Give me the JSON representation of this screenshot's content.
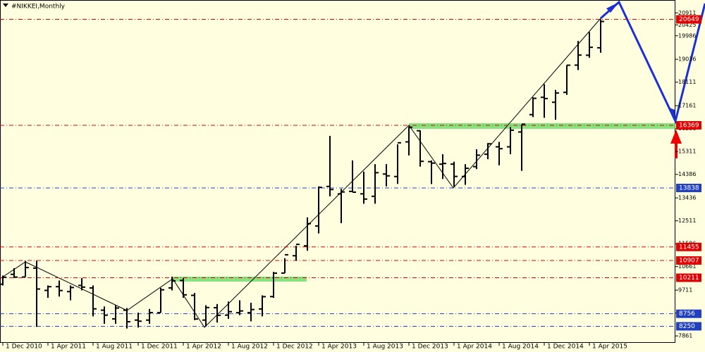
{
  "chart_data": {
    "type": "ohlc",
    "title": "#NIKKEI,Monthly",
    "categories": [
      "1 Dec 2010",
      null,
      null,
      null,
      "1 Apr 2011",
      null,
      null,
      null,
      "1 Aug 2011",
      null,
      null,
      null,
      "1 Dec 2011",
      null,
      null,
      null,
      "1 Apr 2012",
      null,
      null,
      null,
      "1 Aug 2012",
      null,
      null,
      null,
      "1 Dec 2012",
      null,
      null,
      null,
      "1 Apr 2013",
      null,
      null,
      null,
      "1 Aug 2013",
      null,
      null,
      null,
      "1 Dec 2013",
      null,
      null,
      null,
      "1 Apr 2014",
      null,
      null,
      null,
      "1 Aug 2014",
      null,
      null,
      null,
      "1 Dec 2014",
      null,
      null,
      null,
      "1 Apr 2015",
      null
    ],
    "series": [
      {
        "name": "open",
        "values": [
          9950,
          10350,
          10240,
          10600,
          9700,
          9850,
          9650,
          9900,
          9800,
          8900,
          8550,
          8900,
          8500,
          8500,
          8800,
          9800,
          10100,
          9500,
          8500,
          9000,
          8700,
          8800,
          8800,
          8950,
          9450,
          10400,
          11100,
          11500,
          12300,
          13900,
          13600,
          13700,
          13600,
          13500,
          14400,
          14300,
          15700,
          16150,
          14900,
          14800,
          14800,
          14300,
          14700,
          15200,
          15500,
          15500,
          16100,
          16800,
          17500,
          17300,
          17700,
          18800,
          19200,
          19500
        ]
      },
      {
        "name": "high",
        "values": [
          10300,
          10600,
          10890,
          10900,
          9900,
          10100,
          9900,
          10200,
          9900,
          9050,
          9100,
          8990,
          8800,
          8950,
          9800,
          10255,
          10200,
          9600,
          9100,
          9150,
          9250,
          9300,
          9200,
          9500,
          10450,
          11000,
          11500,
          12650,
          13900,
          15942,
          13800,
          14950,
          14500,
          14800,
          14800,
          15600,
          16320,
          16164,
          14950,
          15200,
          14900,
          14800,
          15400,
          15650,
          15700,
          16300,
          16400,
          17500,
          18030,
          17800,
          18800,
          19778,
          20133,
          20649
        ]
      },
      {
        "name": "low",
        "values": [
          9900,
          10200,
          10250,
          8227,
          9400,
          9450,
          9300,
          9700,
          8650,
          8350,
          8350,
          8160,
          8200,
          8350,
          8800,
          9700,
          9400,
          8500,
          8238,
          8400,
          8550,
          8700,
          8450,
          8650,
          9400,
          10400,
          10900,
          11300,
          12000,
          13500,
          12415,
          13700,
          13200,
          13200,
          13900,
          14000,
          15150,
          14700,
          13995,
          14200,
          13885,
          13964,
          14600,
          15000,
          14753,
          15200,
          14529,
          16700,
          16672,
          16592,
          17600,
          18600,
          19100,
          19300
        ]
      },
      {
        "name": "close",
        "values": [
          10229,
          10238,
          10624,
          9755,
          9850,
          9694,
          9816,
          9833,
          8955,
          8700,
          8988,
          8434,
          8455,
          8802,
          9723,
          10083,
          9520,
          8543,
          9007,
          8695,
          8840,
          8870,
          8928,
          9446,
          10395,
          11139,
          11559,
          12397,
          13860,
          13775,
          13677,
          13668,
          13389,
          14455,
          14327,
          15662,
          16291,
          14914,
          14841,
          14828,
          14304,
          14632,
          15162,
          15621,
          15425,
          16173,
          16413,
          17459,
          17450,
          17674,
          18797,
          19206,
          19520,
          20563
        ]
      }
    ],
    "color": "#000000",
    "ylim": [
      7581,
      21431
    ],
    "yticks": [
      20911,
      20425,
      19986,
      19036,
      18111,
      17161,
      16236,
      15311,
      14386,
      13436,
      12511,
      11586,
      10661,
      9711,
      8786,
      7861
    ],
    "levels": [
      {
        "value": 20649,
        "color": "#e00000"
      },
      {
        "value": 16369,
        "color": "#e00000"
      },
      {
        "value": 13838,
        "color": "#2040c0"
      },
      {
        "value": 11455,
        "color": "#e00000"
      },
      {
        "value": 10907,
        "color": "#e00000"
      },
      {
        "value": 10211,
        "color": "#e00000"
      },
      {
        "value": 8756,
        "color": "#2040c0"
      },
      {
        "value": 8250,
        "color": "#2040c0"
      }
    ],
    "grid": false
  }
}
